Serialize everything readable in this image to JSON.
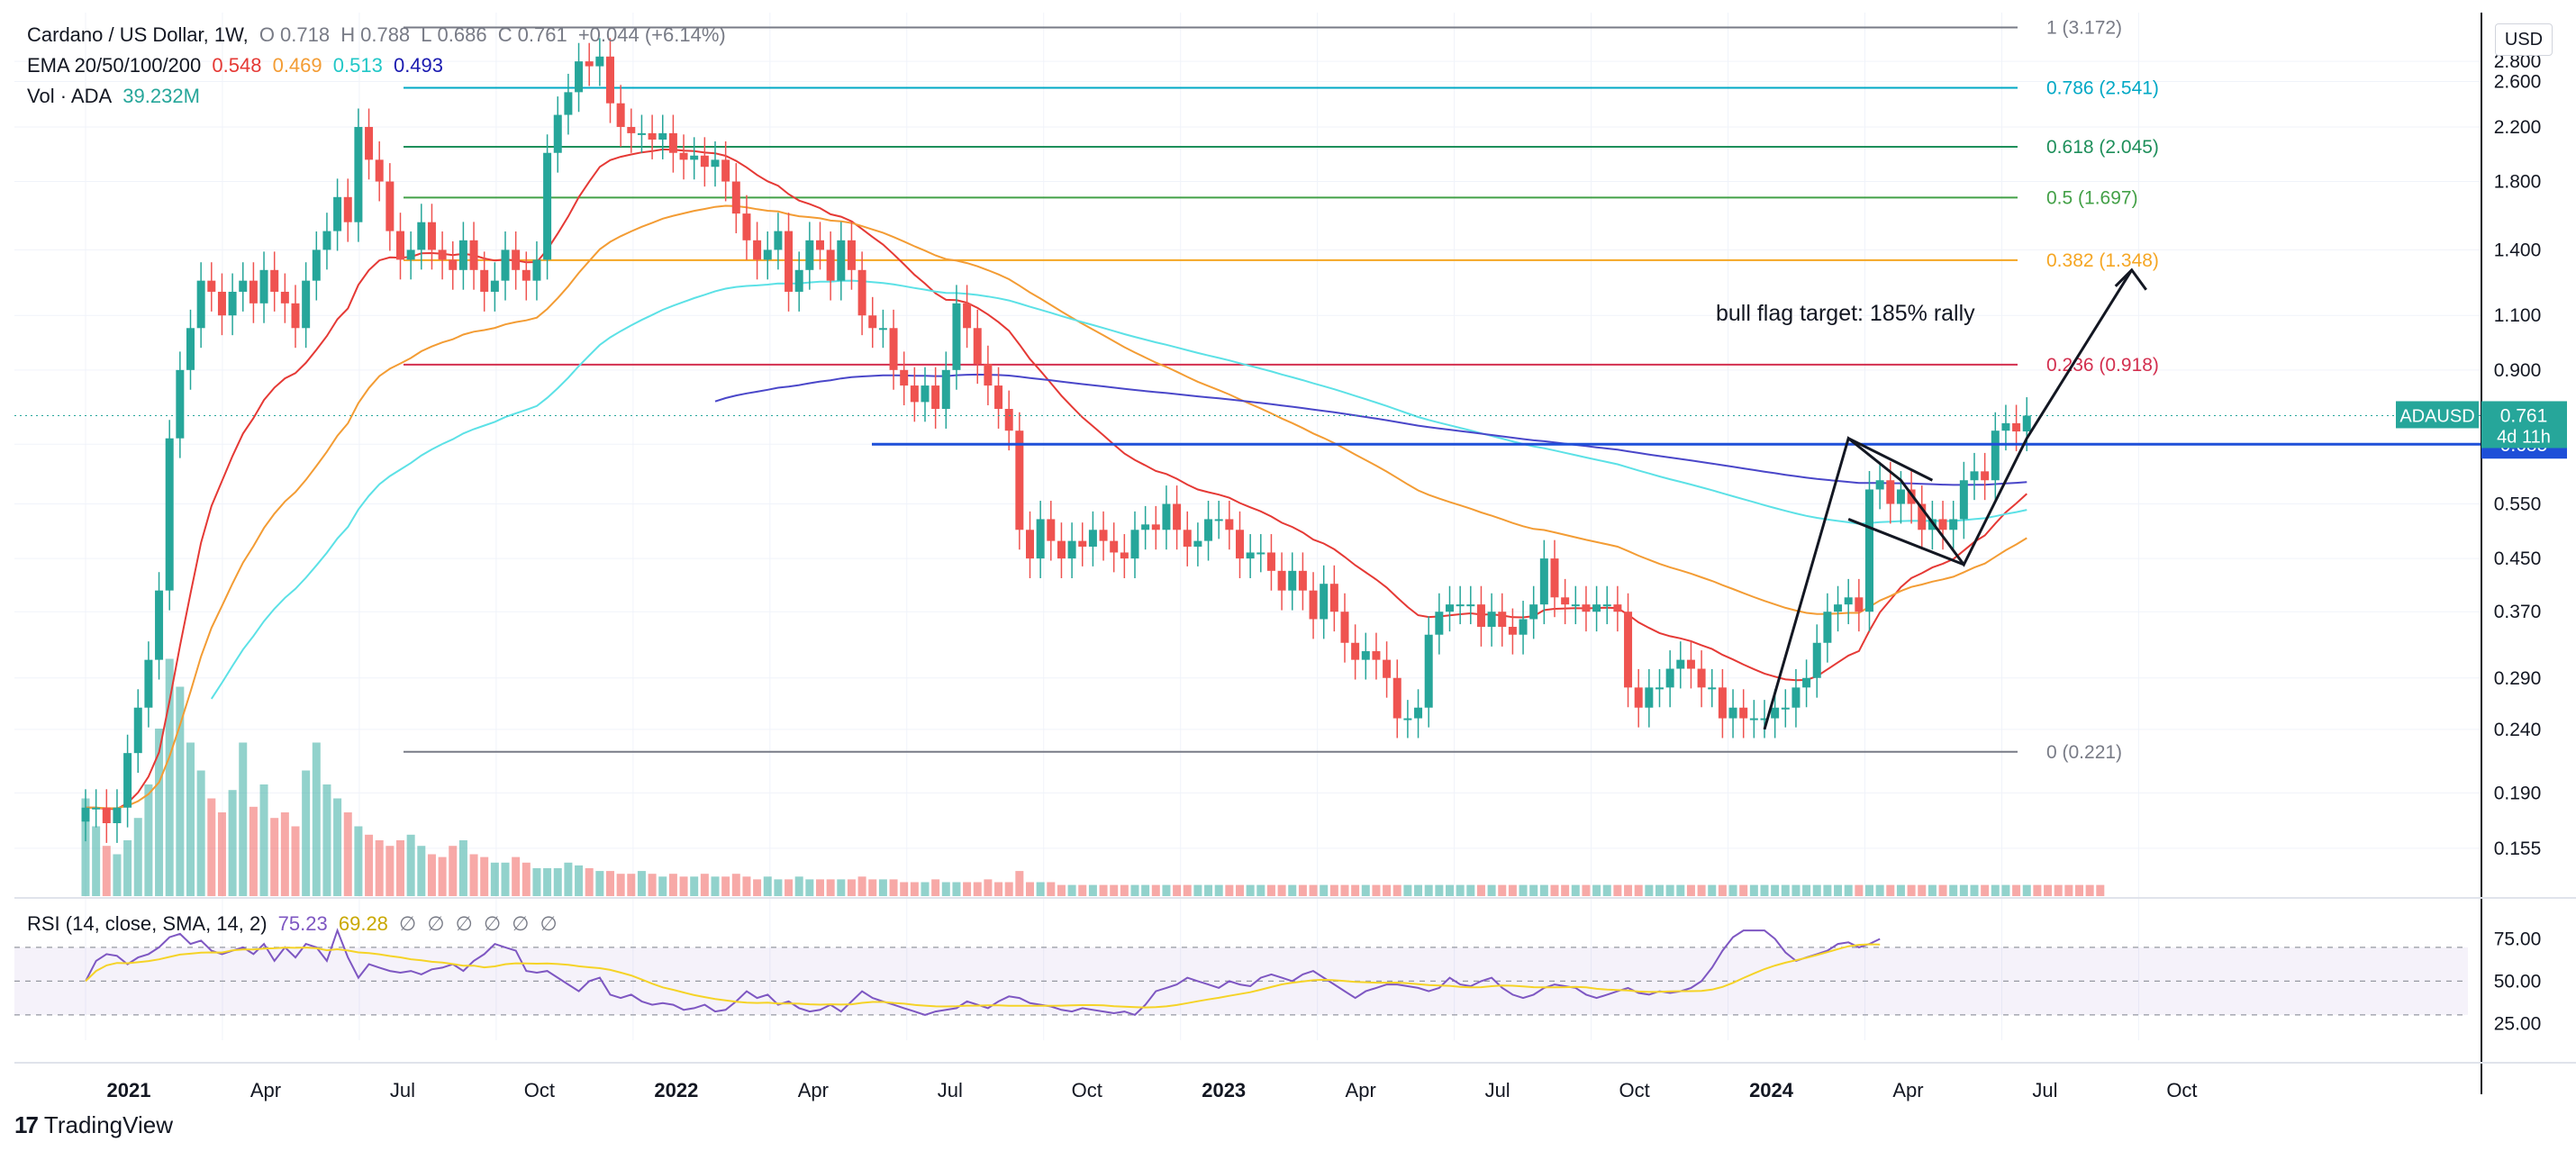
{
  "header": {
    "symbol": "Cardano / US Dollar, 1W,",
    "open_label": "O",
    "open": "0.718",
    "high_label": "H",
    "high": "0.788",
    "low_label": "L",
    "low": "0.686",
    "close_label": "C",
    "close": "0.761",
    "change": "+0.044 (+6.14%)",
    "ema_label": "EMA 20/50/100/200",
    "ema20": "0.548",
    "ema50": "0.469",
    "ema100": "0.513",
    "ema200": "0.493",
    "vol_label": "Vol · ADA",
    "vol": "39.232M",
    "rsi_label": "RSI (14, close, SMA, 14, 2)",
    "rsi": "75.23",
    "rsi_sma": "69.28",
    "rsi_na": [
      "∅",
      "∅",
      "∅",
      "∅",
      "∅",
      "∅"
    ]
  },
  "currency_button": "USD",
  "brand": "TradingView",
  "colors": {
    "up": "#26a69a",
    "down": "#ef5350",
    "ema20": "#e53935",
    "ema50": "#f39c34",
    "ema100": "#5ce1e6",
    "ema200": "#4a47c9",
    "hline": "#1e4fd8",
    "rsi": "#7e57c2",
    "rsi_sma": "#f5d327"
  },
  "chart_data": {
    "type": "candlestick",
    "interval": "1W",
    "y_scale": "log",
    "price_ticks": [
      "2.800",
      "2.600",
      "2.200",
      "1.800",
      "1.400",
      "1.100",
      "0.900",
      "0.685",
      "0.550",
      "0.450",
      "0.370",
      "0.290",
      "0.240",
      "0.190",
      "0.155"
    ],
    "x_ticks": [
      "2021",
      "Apr",
      "Jul",
      "Oct",
      "2022",
      "Apr",
      "Jul",
      "Oct",
      "2023",
      "Apr",
      "Jul",
      "Oct",
      "2024",
      "Apr",
      "Jul",
      "Oct"
    ],
    "rsi_ticks": [
      "75.00",
      "50.00",
      "25.00"
    ],
    "last_price_tag": {
      "symbol": "ADAUSD",
      "price": "0.761",
      "countdown": "4d 11h"
    },
    "horizontal_level": {
      "price": "0.685"
    },
    "fib_levels": [
      {
        "ratio": "1",
        "price": "3.172",
        "text": "1 (3.172)",
        "color": "#787b86"
      },
      {
        "ratio": "0.786",
        "price": "2.541",
        "text": "0.786 (2.541)",
        "color": "#00a8c5"
      },
      {
        "ratio": "0.618",
        "price": "2.045",
        "text": "0.618 (2.045)",
        "color": "#1e8f5b"
      },
      {
        "ratio": "0.5",
        "price": "1.697",
        "text": "0.5 (1.697)",
        "color": "#43a047"
      },
      {
        "ratio": "0.382",
        "price": "1.348",
        "text": "0.382 (1.348)",
        "color": "#f5a623"
      },
      {
        "ratio": "0.236",
        "price": "0.918",
        "text": "0.236 (0.918)",
        "color": "#d32f4f"
      },
      {
        "ratio": "0",
        "price": "0.221",
        "text": "0 (0.221)",
        "color": "#787b86"
      }
    ],
    "annotation": "bull flag target: 185% rally",
    "series": [
      {
        "name": "EMA 20",
        "value": "0.548"
      },
      {
        "name": "EMA 50",
        "value": "0.469"
      },
      {
        "name": "EMA 100",
        "value": "0.513"
      },
      {
        "name": "EMA 200",
        "value": "0.493"
      }
    ],
    "closes": [
      0.18,
      0.18,
      0.17,
      0.18,
      0.22,
      0.26,
      0.31,
      0.4,
      0.7,
      0.9,
      1.05,
      1.25,
      1.2,
      1.1,
      1.2,
      1.25,
      1.15,
      1.3,
      1.2,
      1.15,
      1.05,
      1.25,
      1.4,
      1.5,
      1.7,
      1.55,
      2.2,
      1.95,
      1.8,
      1.5,
      1.35,
      1.4,
      1.55,
      1.4,
      1.35,
      1.3,
      1.45,
      1.3,
      1.2,
      1.25,
      1.4,
      1.3,
      1.25,
      1.35,
      2.0,
      2.3,
      2.5,
      2.8,
      2.75,
      2.85,
      2.4,
      2.2,
      2.15,
      2.15,
      2.1,
      2.15,
      2.0,
      1.95,
      1.98,
      1.9,
      1.95,
      1.8,
      1.6,
      1.45,
      1.35,
      1.4,
      1.5,
      1.2,
      1.3,
      1.45,
      1.4,
      1.25,
      1.45,
      1.3,
      1.1,
      1.05,
      1.05,
      0.9,
      0.85,
      0.8,
      0.85,
      0.78,
      0.9,
      1.15,
      1.05,
      0.92,
      0.85,
      0.78,
      0.72,
      0.5,
      0.45,
      0.52,
      0.48,
      0.45,
      0.48,
      0.47,
      0.5,
      0.48,
      0.46,
      0.45,
      0.5,
      0.51,
      0.5,
      0.55,
      0.5,
      0.47,
      0.48,
      0.52,
      0.52,
      0.5,
      0.45,
      0.46,
      0.46,
      0.43,
      0.4,
      0.43,
      0.4,
      0.36,
      0.41,
      0.37,
      0.33,
      0.31,
      0.32,
      0.31,
      0.29,
      0.25,
      0.25,
      0.26,
      0.34,
      0.37,
      0.38,
      0.38,
      0.38,
      0.35,
      0.37,
      0.35,
      0.34,
      0.36,
      0.38,
      0.45,
      0.39,
      0.38,
      0.38,
      0.37,
      0.38,
      0.38,
      0.37,
      0.28,
      0.26,
      0.28,
      0.28,
      0.3,
      0.31,
      0.3,
      0.28,
      0.28,
      0.25,
      0.26,
      0.25,
      0.25,
      0.25,
      0.26,
      0.26,
      0.28,
      0.29,
      0.33,
      0.37,
      0.38,
      0.39,
      0.37,
      0.58,
      0.6,
      0.55,
      0.58,
      0.55,
      0.5,
      0.52,
      0.5,
      0.52,
      0.6,
      0.62,
      0.6,
      0.72,
      0.74,
      0.718,
      0.761
    ],
    "rsi_values": [
      50,
      62,
      66,
      65,
      60,
      64,
      66,
      70,
      76,
      78,
      72,
      74,
      68,
      66,
      68,
      70,
      66,
      72,
      62,
      70,
      64,
      72,
      70,
      62,
      80,
      64,
      52,
      60,
      58,
      56,
      55,
      56,
      54,
      57,
      58,
      60,
      56,
      62,
      66,
      72,
      70,
      68,
      56,
      55,
      56,
      52,
      48,
      44,
      50,
      52,
      42,
      40,
      42,
      38,
      36,
      37,
      36,
      33,
      34,
      36,
      32,
      33,
      38,
      44,
      40,
      42,
      36,
      38,
      34,
      32,
      33,
      36,
      32,
      38,
      44,
      40,
      38,
      36,
      34,
      32,
      30,
      32,
      33,
      34,
      38,
      36,
      34,
      38,
      41,
      40,
      37,
      36,
      35,
      33,
      32,
      34,
      33,
      32,
      31,
      32,
      30,
      36,
      44,
      46,
      48,
      52,
      50,
      48,
      46,
      50,
      48,
      47,
      52,
      54,
      52,
      50,
      54,
      56,
      52,
      48,
      44,
      40,
      44,
      46,
      48,
      48,
      47,
      46,
      44,
      46,
      52,
      48,
      47,
      50,
      52,
      46,
      42,
      40,
      42,
      46,
      48,
      47,
      46,
      42,
      40,
      42,
      44,
      46,
      43,
      42,
      44,
      43,
      44,
      46,
      50,
      58,
      68,
      76,
      80,
      80,
      80,
      75,
      67,
      62,
      64,
      66,
      68,
      72,
      73,
      70,
      72,
      75
    ],
    "volume_relative": [
      0.35,
      0.25,
      0.18,
      0.15,
      0.2,
      0.28,
      0.4,
      0.6,
      0.85,
      0.75,
      0.55,
      0.45,
      0.35,
      0.3,
      0.38,
      0.55,
      0.32,
      0.4,
      0.28,
      0.3,
      0.25,
      0.45,
      0.55,
      0.4,
      0.35,
      0.3,
      0.25,
      0.22,
      0.2,
      0.18,
      0.2,
      0.22,
      0.18,
      0.15,
      0.14,
      0.18,
      0.2,
      0.15,
      0.14,
      0.12,
      0.12,
      0.14,
      0.12,
      0.1,
      0.1,
      0.1,
      0.12,
      0.11,
      0.1,
      0.09,
      0.09,
      0.08,
      0.08,
      0.09,
      0.08,
      0.07,
      0.08,
      0.07,
      0.07,
      0.08,
      0.07,
      0.07,
      0.08,
      0.07,
      0.06,
      0.07,
      0.06,
      0.06,
      0.07,
      0.06,
      0.06,
      0.06,
      0.06,
      0.06,
      0.07,
      0.06,
      0.06,
      0.06,
      0.05,
      0.05,
      0.05,
      0.06,
      0.05,
      0.05,
      0.05,
      0.05,
      0.06,
      0.05,
      0.05,
      0.09,
      0.05,
      0.05,
      0.05,
      0.04,
      0.04,
      0.04,
      0.04,
      0.04,
      0.04,
      0.04,
      0.04,
      0.04,
      0.04,
      0.04,
      0.04,
      0.04,
      0.04,
      0.04,
      0.04,
      0.04,
      0.04,
      0.04,
      0.04,
      0.04,
      0.04,
      0.04,
      0.04,
      0.04,
      0.04,
      0.04,
      0.04,
      0.04,
      0.04,
      0.04,
      0.04,
      0.04,
      0.04,
      0.04,
      0.04,
      0.04,
      0.04,
      0.04,
      0.04,
      0.04,
      0.04,
      0.04,
      0.04,
      0.04,
      0.04,
      0.04,
      0.04,
      0.04,
      0.04,
      0.04,
      0.04,
      0.04,
      0.04,
      0.04,
      0.04,
      0.04,
      0.04,
      0.04,
      0.04,
      0.04,
      0.04,
      0.04,
      0.04,
      0.04,
      0.04,
      0.04,
      0.04,
      0.04,
      0.04,
      0.04,
      0.04,
      0.04,
      0.04,
      0.04,
      0.04,
      0.04,
      0.04,
      0.04,
      0.04,
      0.04,
      0.04,
      0.04,
      0.04,
      0.04,
      0.04,
      0.04,
      0.04,
      0.04,
      0.04,
      0.04,
      0.04,
      0.04,
      0.04,
      0.04,
      0.04,
      0.04,
      0.04,
      0.04,
      0.04
    ]
  }
}
